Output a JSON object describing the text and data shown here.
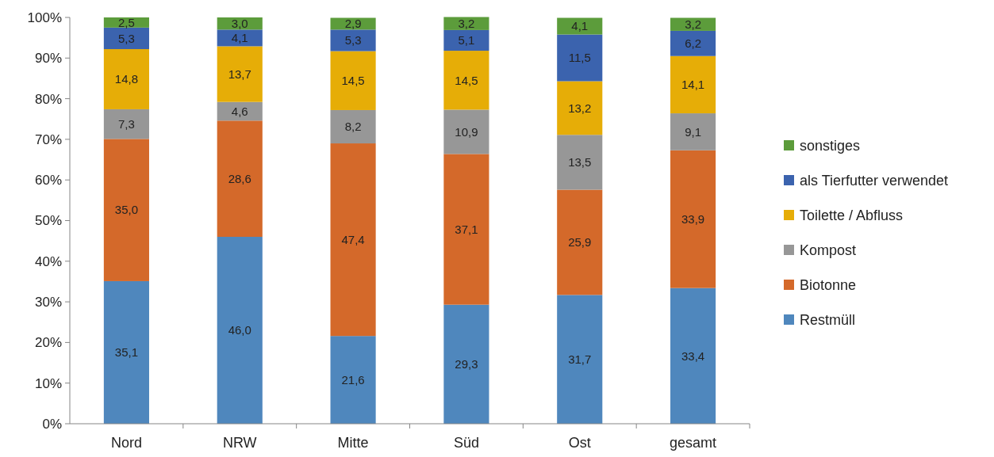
{
  "chart_data": {
    "type": "bar",
    "stacked": true,
    "categories": [
      "Nord",
      "NRW",
      "Mitte",
      "Süd",
      "Ost",
      "gesamt"
    ],
    "ylim": [
      0,
      100
    ],
    "yticks": [
      {
        "value": 0,
        "label": "0%"
      },
      {
        "value": 10,
        "label": "10%"
      },
      {
        "value": 20,
        "label": "20%"
      },
      {
        "value": 30,
        "label": "30%"
      },
      {
        "value": 40,
        "label": "40%"
      },
      {
        "value": 50,
        "label": "50%"
      },
      {
        "value": 60,
        "label": "60%"
      },
      {
        "value": 70,
        "label": "70%"
      },
      {
        "value": 80,
        "label": "80%"
      },
      {
        "value": 90,
        "label": "90%"
      },
      {
        "value": 100,
        "label": "100%"
      }
    ],
    "grid": false,
    "legend": "right",
    "series": [
      {
        "name": "Restmüll",
        "color": "#4f87bd",
        "values": [
          35.1,
          46.0,
          21.6,
          29.3,
          31.7,
          33.4
        ],
        "value_labels": [
          "35,1",
          "46,0",
          "21,6",
          "29,3",
          "31,7",
          "33,4"
        ]
      },
      {
        "name": "Biotonne",
        "color": "#d4692a",
        "values": [
          35.0,
          28.6,
          47.4,
          37.1,
          25.9,
          33.9
        ],
        "value_labels": [
          "35,0",
          "28,6",
          "47,4",
          "37,1",
          "25,9",
          "33,9"
        ]
      },
      {
        "name": "Kompost",
        "color": "#979797",
        "values": [
          7.3,
          4.6,
          8.2,
          10.9,
          13.5,
          9.1
        ],
        "value_labels": [
          "7,3",
          "4,6",
          "8,2",
          "10,9",
          "13,5",
          "9,1"
        ]
      },
      {
        "name": "Toilette / Abfluss",
        "color": "#e6ad07",
        "values": [
          14.8,
          13.7,
          14.5,
          14.5,
          13.2,
          14.1
        ],
        "value_labels": [
          "14,8",
          "13,7",
          "14,5",
          "14,5",
          "13,2",
          "14,1"
        ]
      },
      {
        "name": "als Tierfutter verwendet",
        "color": "#3b63ae",
        "values": [
          5.3,
          4.1,
          5.3,
          5.1,
          11.5,
          6.2
        ],
        "value_labels": [
          "5,3",
          "4,1",
          "5,3",
          "5,1",
          "11,5",
          "6,2"
        ]
      },
      {
        "name": "sonstiges",
        "color": "#5c9c3b",
        "values": [
          2.5,
          3.0,
          2.9,
          3.2,
          4.1,
          3.2
        ],
        "value_labels": [
          "2,5",
          "3,0",
          "2,9",
          "3,2",
          "4,1",
          "3,2"
        ]
      }
    ]
  }
}
